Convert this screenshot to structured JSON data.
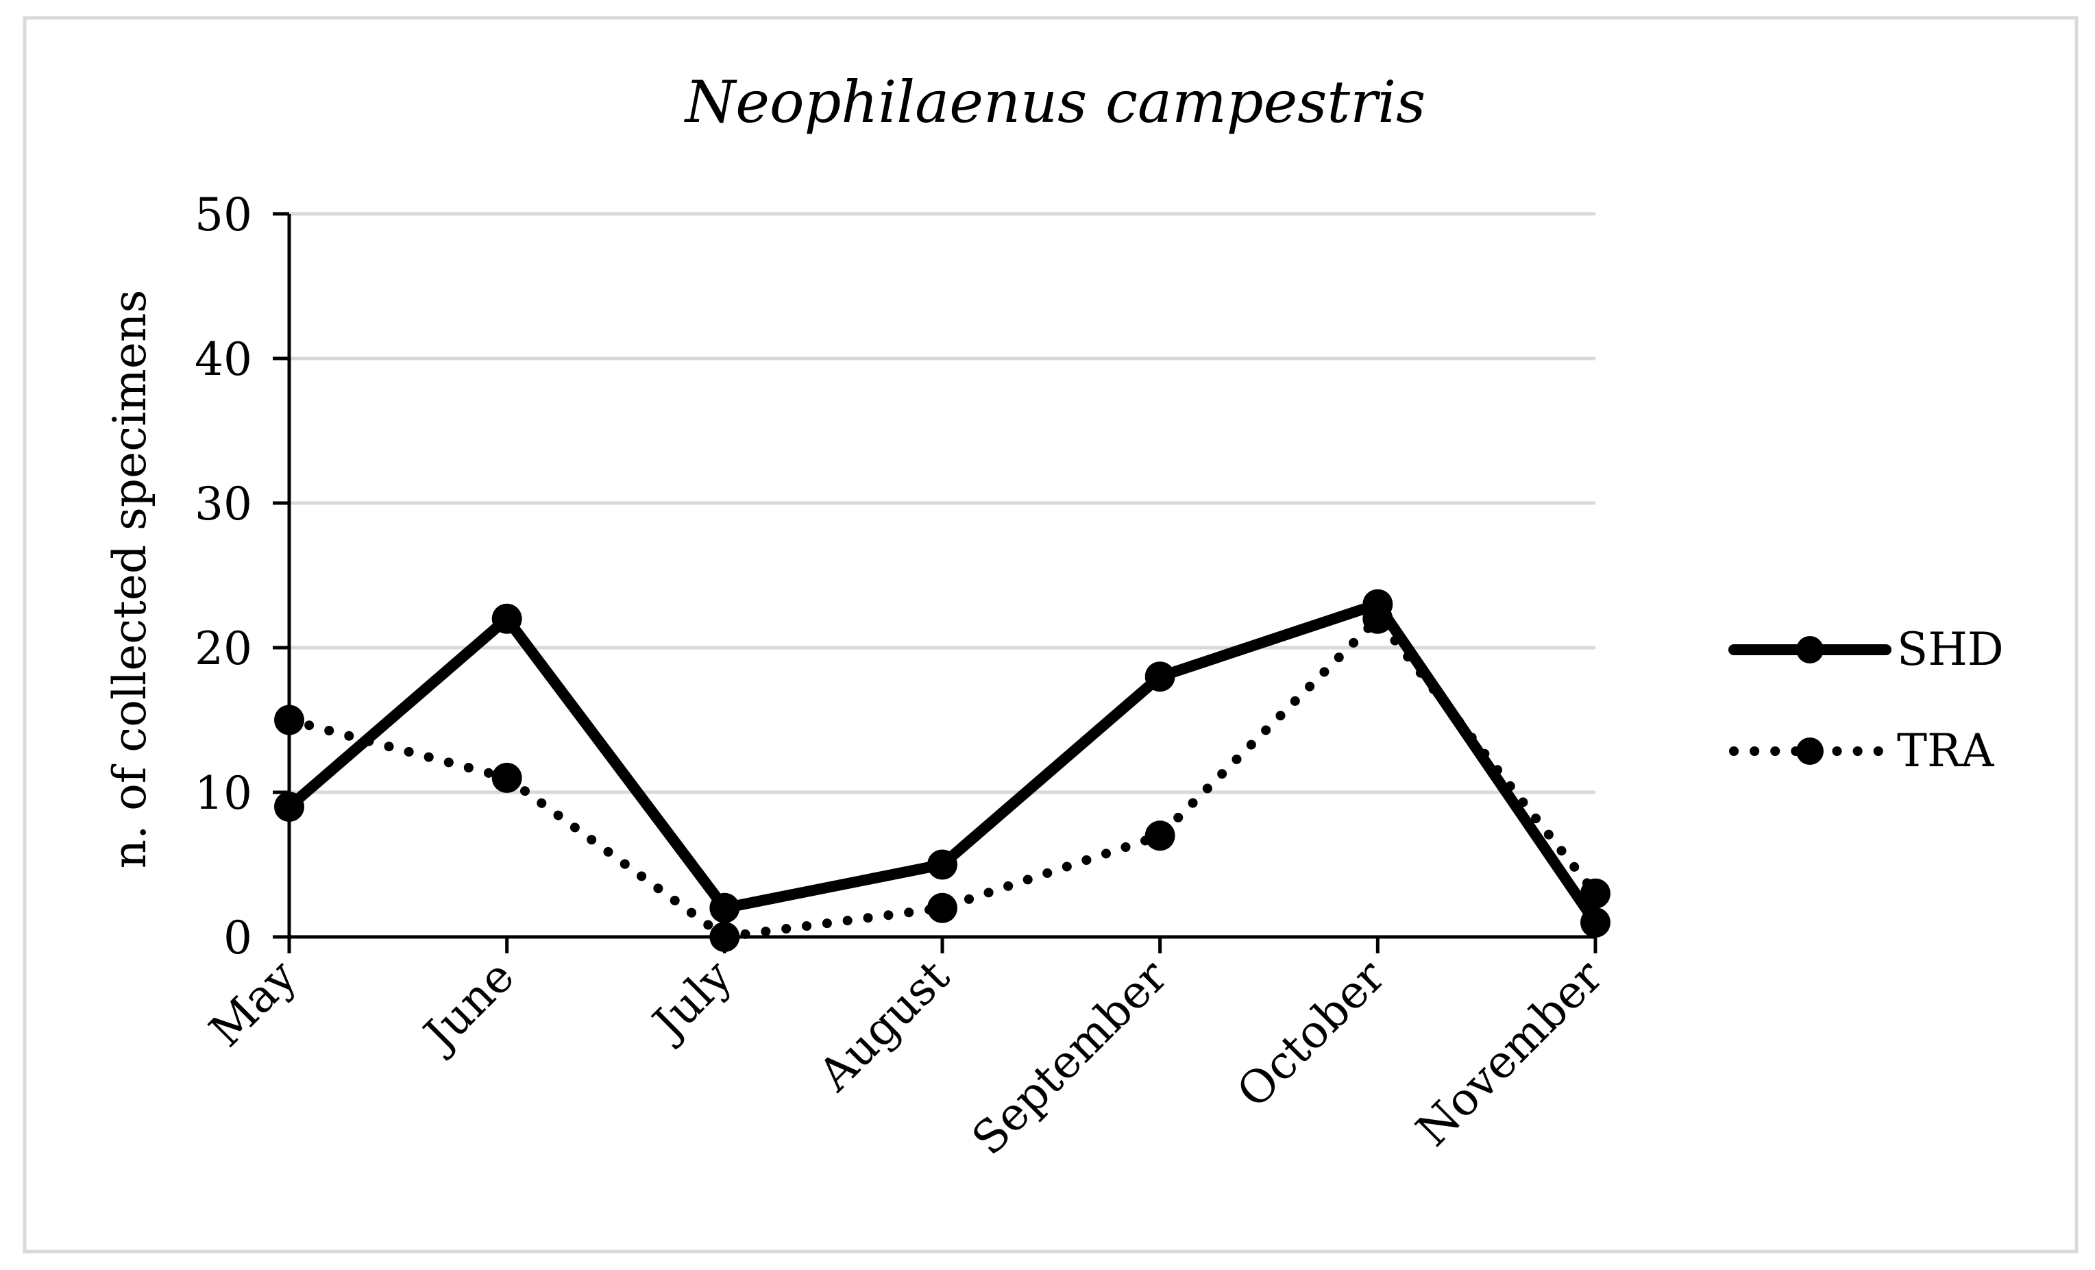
{
  "chart_data": {
    "type": "line",
    "title": "Neophilaenus campestris",
    "xlabel": "",
    "ylabel": "n. of collected specimens",
    "categories": [
      "May",
      "June",
      "July",
      "August",
      "September",
      "October",
      "November"
    ],
    "ylim": [
      0,
      50
    ],
    "yticks": [
      0,
      10,
      20,
      30,
      40,
      50
    ],
    "grid": true,
    "legend_position": "right",
    "series": [
      {
        "name": "SHD",
        "values": [
          9,
          22,
          2,
          5,
          18,
          23,
          1
        ],
        "style": "solid",
        "color": "#000000"
      },
      {
        "name": "TRA",
        "values": [
          15,
          11,
          0,
          2,
          7,
          22,
          3
        ],
        "style": "dotted",
        "color": "#000000"
      }
    ]
  }
}
